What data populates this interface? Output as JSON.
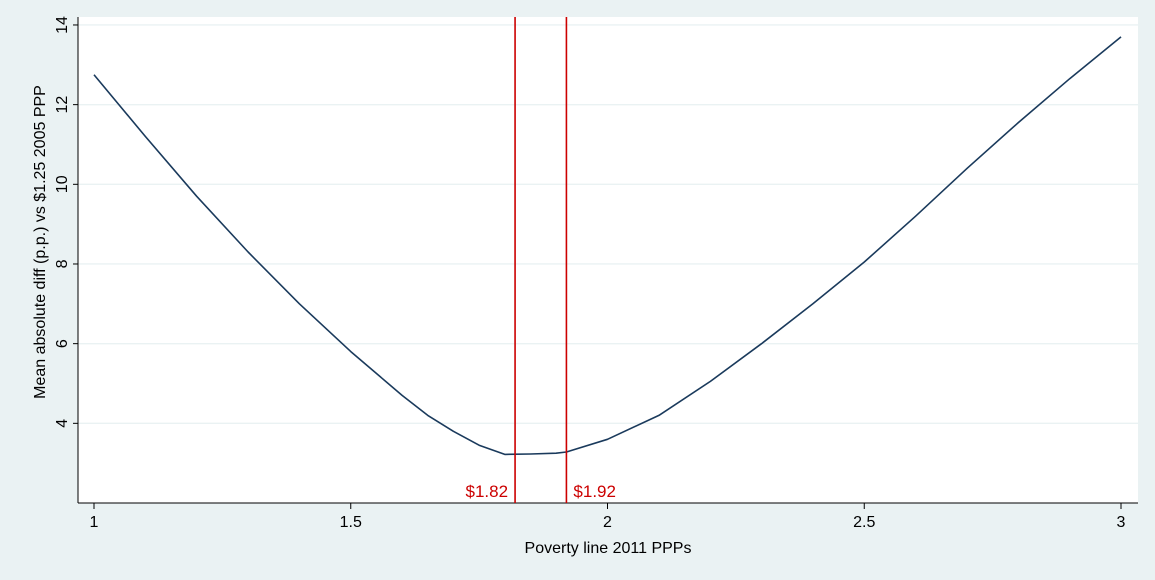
{
  "chart_data": {
    "type": "line",
    "title": "",
    "xlabel": "Poverty line 2011 PPPs",
    "ylabel": "Mean absolute diff (p.p.) vs $1.25 2005 PPP",
    "xlim": [
      1,
      3
    ],
    "ylim": [
      2.0,
      14.2
    ],
    "xticks": [
      1,
      1.5,
      2,
      2.5,
      3
    ],
    "xtick_labels": [
      "1",
      "1.5",
      "2",
      "2.5",
      "3"
    ],
    "yticks": [
      4,
      6,
      8,
      10,
      12,
      14
    ],
    "ytick_labels": [
      "4",
      "6",
      "8",
      "10",
      "12",
      "14"
    ],
    "grid": true,
    "legend": "none",
    "colors": {
      "background": "#eaf2f3",
      "plot_area": "#ffffff",
      "line": "#1a3a5c",
      "reference": "#cc0000",
      "grid": "#eaf2f3"
    },
    "series": [
      {
        "x": [
          1.0,
          1.1,
          1.2,
          1.3,
          1.4,
          1.5,
          1.6,
          1.65,
          1.7,
          1.75,
          1.8,
          1.85,
          1.9,
          1.92,
          2.0,
          2.1,
          2.2,
          2.3,
          2.4,
          2.5,
          2.6,
          2.7,
          2.8,
          2.9,
          3.0
        ],
        "y": [
          12.75,
          11.2,
          9.7,
          8.3,
          7.0,
          5.8,
          4.7,
          4.2,
          3.8,
          3.45,
          3.22,
          3.23,
          3.25,
          3.28,
          3.6,
          4.2,
          5.05,
          6.0,
          7.0,
          8.05,
          9.2,
          10.4,
          11.55,
          12.65,
          13.7
        ]
      }
    ],
    "reference_lines": [
      {
        "x": 1.82,
        "label": "$1.82",
        "label_side": "left"
      },
      {
        "x": 1.92,
        "label": "$1.92",
        "label_side": "right"
      }
    ]
  }
}
